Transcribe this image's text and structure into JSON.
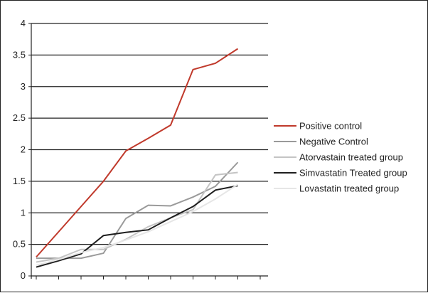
{
  "chart_data": {
    "type": "line",
    "title": "",
    "xlabel": "",
    "ylabel": "",
    "ylim": [
      0,
      4
    ],
    "yticks": [
      "0",
      "0.5",
      "1",
      "1.5",
      "2",
      "2.5",
      "3",
      "3.5",
      "4"
    ],
    "x": [
      1,
      2,
      3,
      4,
      5,
      6,
      7,
      8,
      9,
      10,
      11
    ],
    "grid": "horizontal",
    "legend_position": "right",
    "series": [
      {
        "name": "Positive control",
        "color": "#c0392b",
        "values": [
          0.3,
          0.7,
          1.1,
          1.5,
          1.98,
          2.18,
          2.39,
          3.27,
          3.37,
          3.6,
          null
        ]
      },
      {
        "name": "Negative Control",
        "color": "#9a9a9a",
        "values": [
          0.28,
          0.28,
          0.28,
          0.36,
          0.91,
          1.12,
          1.11,
          1.25,
          1.42,
          1.8,
          null
        ]
      },
      {
        "name": "Atorvastain treated group",
        "color": "#c4c4c4",
        "values": [
          0.22,
          0.28,
          0.42,
          0.42,
          0.58,
          0.78,
          0.92,
          1.05,
          1.6,
          1.64,
          null
        ]
      },
      {
        "name": "Simvastatin Treated group",
        "color": "#1e1e1e",
        "values": [
          0.14,
          0.24,
          0.35,
          0.64,
          0.69,
          0.73,
          0.92,
          1.1,
          1.36,
          1.43,
          null
        ]
      },
      {
        "name": "Lovastatin treated group",
        "color": "#e6e6e6",
        "values": [
          0.17,
          0.26,
          0.37,
          0.45,
          0.57,
          0.7,
          0.86,
          1.02,
          1.22,
          1.45,
          null
        ]
      }
    ]
  }
}
